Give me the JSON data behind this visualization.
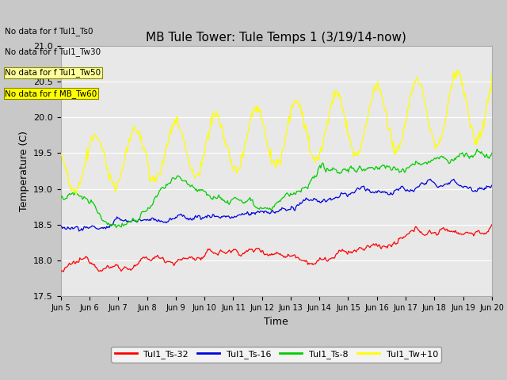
{
  "title": "MB Tule Tower: Tule Temps 1 (3/19/14-now)",
  "xlabel": "Time",
  "ylabel": "Temperature (C)",
  "ylim": [
    17.5,
    21.0
  ],
  "xlim": [
    0,
    15
  ],
  "x_tick_labels": [
    "Jun 5",
    "Jun 6",
    "Jun 7",
    "Jun 8",
    "Jun 9",
    "Jun 10",
    "Jun 11",
    "Jun 12",
    "Jun 13",
    "Jun 14",
    "Jun 15",
    "Jun 16",
    "Jun 17",
    "Jun 18",
    "Jun 19",
    "Jun 20"
  ],
  "legend_labels": [
    "Tul1_Ts-32",
    "Tul1_Ts-16",
    "Tul1_Ts-8",
    "Tul1_Tw+10"
  ],
  "line_colors": [
    "#ff0000",
    "#0000dd",
    "#00cc00",
    "#ffff00"
  ],
  "plot_bg_color": "#e8e8e8",
  "fig_bg_color": "#c8c8c8",
  "no_data_texts": [
    "No data for f Tul1_Ts0",
    "No data for f Tul1_Tw30",
    "No data for f Tul1_Tw50",
    "No data for f MB_Tw60"
  ],
  "no_data_bg": [
    "none",
    "none",
    "#ffff99",
    "#ffff00"
  ],
  "no_data_ec": [
    "none",
    "none",
    "#888800",
    "#888800"
  ]
}
